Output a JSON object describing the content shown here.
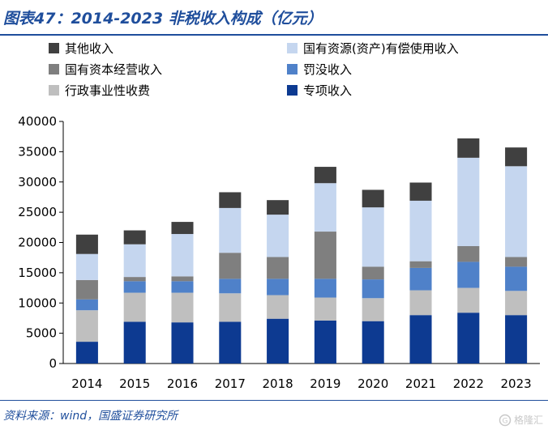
{
  "header": {
    "title": "图表47：2014-2023 非税收入构成（亿元）"
  },
  "footer": {
    "source": "资料来源：wind，国盛证券研究所",
    "watermark": "格隆汇"
  },
  "chart_data": {
    "type": "bar",
    "stacked": true,
    "title": "图表47：2014-2023 非税收入构成（亿元）",
    "xlabel": "",
    "ylabel": "",
    "ylim": [
      0,
      40000
    ],
    "yticks": [
      0,
      5000,
      10000,
      15000,
      20000,
      25000,
      30000,
      35000,
      40000
    ],
    "categories": [
      "2014",
      "2015",
      "2016",
      "2017",
      "2018",
      "2019",
      "2020",
      "2021",
      "2022",
      "2023"
    ],
    "legend_position": "top",
    "grid": false,
    "series": [
      {
        "name": "专项收入",
        "color": "#0d3a91",
        "values": [
          3600,
          6900,
          6800,
          6900,
          7400,
          7100,
          7000,
          8000,
          8400,
          8000
        ]
      },
      {
        "name": "行政事业性收费",
        "color": "#bfbfbf",
        "values": [
          5200,
          4800,
          4900,
          4700,
          3900,
          3800,
          3800,
          4100,
          4100,
          4000
        ]
      },
      {
        "name": "罚没收入",
        "color": "#4f81c9",
        "values": [
          1800,
          1900,
          1900,
          2400,
          2700,
          3100,
          3100,
          3700,
          4300,
          4000
        ]
      },
      {
        "name": "国有资本经营收入",
        "color": "#7f7f7f",
        "values": [
          3200,
          700,
          800,
          4300,
          3600,
          7800,
          2100,
          1100,
          2600,
          1600
        ]
      },
      {
        "name": "国有资源(资产)有偿使用收入",
        "color": "#c5d6ef",
        "values": [
          4300,
          5400,
          7000,
          7400,
          7000,
          8000,
          9800,
          10000,
          14600,
          15000
        ]
      },
      {
        "name": "其他收入",
        "color": "#404040",
        "values": [
          3200,
          2300,
          2000,
          2600,
          2400,
          2700,
          2900,
          3000,
          3200,
          3100
        ]
      }
    ]
  }
}
